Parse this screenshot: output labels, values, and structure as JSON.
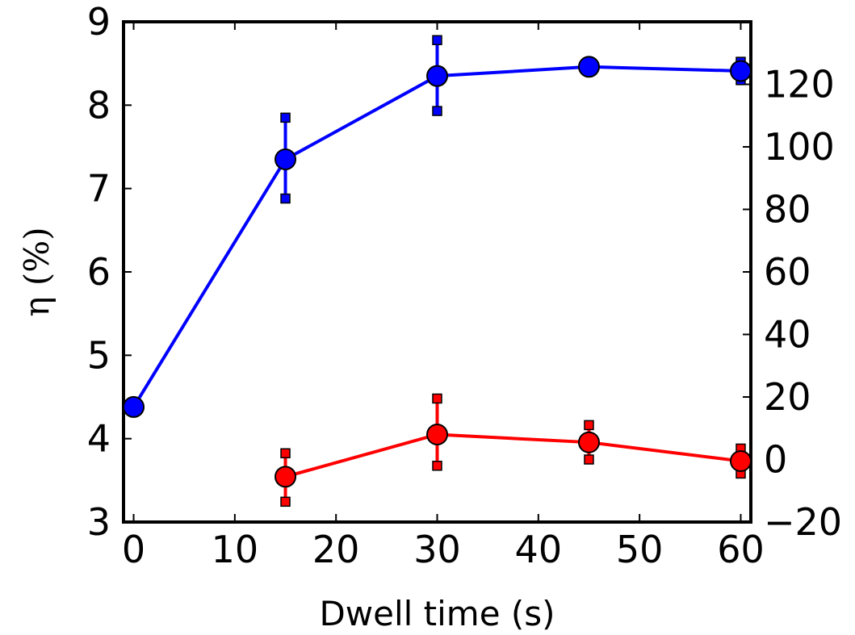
{
  "chart_data": {
    "type": "line",
    "xlabel": "Dwell time (s)",
    "ylabel": "η (%)",
    "xlim": [
      -1,
      61
    ],
    "ylim": [
      3,
      9
    ],
    "y2lim": [
      -20,
      140
    ],
    "xticks": [
      0,
      10,
      20,
      30,
      40,
      50,
      60
    ],
    "yticks": [
      3,
      4,
      5,
      6,
      7,
      8,
      9
    ],
    "y2ticks": [
      -20,
      0,
      20,
      40,
      60,
      80,
      100,
      120
    ],
    "grid": false,
    "series": [
      {
        "axis": "left",
        "color": "#0000ff",
        "x": [
          0,
          15,
          30,
          45,
          60
        ],
        "values": [
          4.38,
          7.35,
          8.35,
          8.46,
          8.41
        ],
        "err_low": [
          null,
          6.88,
          7.93,
          null,
          8.3
        ],
        "err_high": [
          null,
          7.85,
          8.78,
          null,
          8.52
        ]
      },
      {
        "axis": "right",
        "color": "#ff0000",
        "x": [
          15,
          30,
          45,
          60
        ],
        "values": [
          -5.5,
          8.0,
          5.5,
          -0.5
        ],
        "err_low": [
          -13.5,
          -2.0,
          0.0,
          -4.5
        ],
        "err_high": [
          2.0,
          19.5,
          11.0,
          3.5
        ]
      }
    ]
  }
}
